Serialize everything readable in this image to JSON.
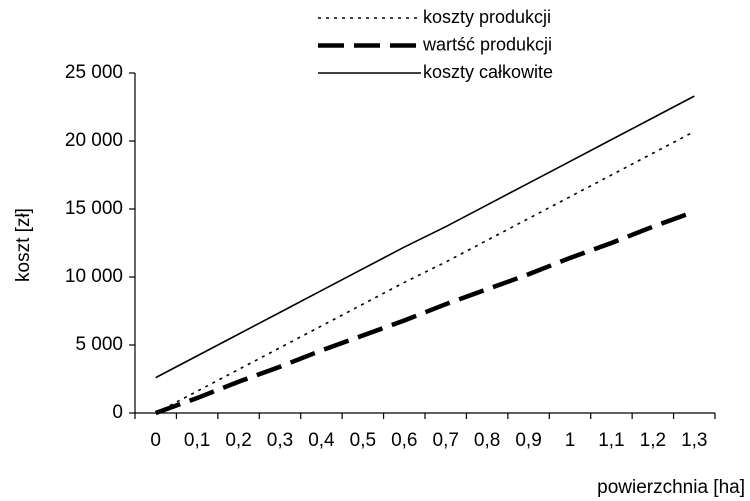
{
  "chart_data": {
    "type": "line",
    "x_label": "powierzchnia [ha]",
    "y_label": "koszt [zł]",
    "categories": [
      "0",
      "0,1",
      "0,2",
      "0,3",
      "0,4",
      "0,5",
      "0,6",
      "0,7",
      "0,8",
      "0,9",
      "1",
      "1,1",
      "1,2",
      "1,3"
    ],
    "series": [
      {
        "name": "koszty produkcji",
        "color": "#000000",
        "dash": "dotted",
        "values": [
          0,
          1600,
          3200,
          4800,
          6400,
          8000,
          9600,
          11100,
          12700,
          14300,
          15900,
          17500,
          19100,
          20700
        ]
      },
      {
        "name": "wartść produkcji",
        "color": "#000000",
        "dash": "dashed",
        "values": [
          0,
          1100,
          2300,
          3400,
          4600,
          5700,
          6800,
          8000,
          9100,
          10200,
          11400,
          12500,
          13700,
          14800
        ]
      },
      {
        "name": "koszty całkowite",
        "color": "#000000",
        "dash": "solid",
        "values": [
          2600,
          4200,
          5800,
          7400,
          9000,
          10600,
          12200,
          13700,
          15300,
          16900,
          18500,
          20100,
          21700,
          23300
        ]
      }
    ],
    "ylim": [
      0,
      25000
    ],
    "yticks": [
      0,
      {
        "value": 5000,
        "label": "5 000"
      },
      {
        "value": 10000,
        "label": "10 000"
      },
      {
        "value": 15000,
        "label": "15 000"
      },
      {
        "value": 20000,
        "label": "20 000"
      },
      {
        "value": 25000,
        "label": "25 000"
      }
    ],
    "grid": false,
    "legend": "top"
  }
}
